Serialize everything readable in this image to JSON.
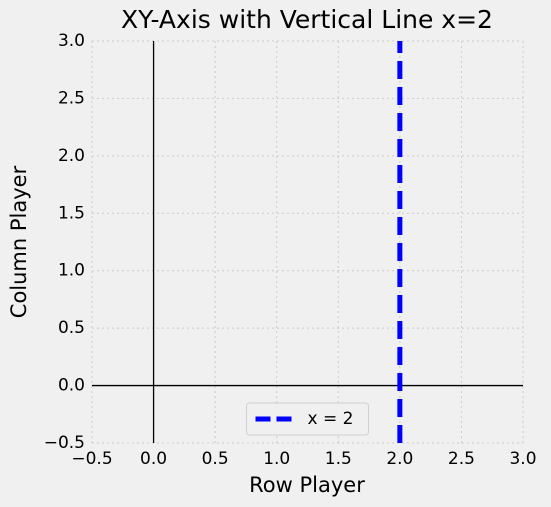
{
  "chart_data": {
    "type": "line",
    "title": "XY-Axis with Vertical Line x=2",
    "xlabel": "Row Player",
    "ylabel": "Column Player",
    "series": [
      {
        "name": "x = 2",
        "color": "#0000ff",
        "x": [
          2,
          2
        ],
        "values": [
          -0.5,
          3.0
        ]
      }
    ],
    "xlim": [
      -0.5,
      3.0
    ],
    "ylim": [
      -0.5,
      3.0
    ],
    "xticks": [
      {
        "value": -0.5,
        "label": "−0.5"
      },
      {
        "value": 0,
        "label": "0.0"
      },
      {
        "value": 0.5,
        "label": "0.5"
      },
      {
        "value": 1,
        "label": "1.0"
      },
      {
        "value": 1.5,
        "label": "1.5"
      },
      {
        "value": 2,
        "label": "2.0"
      },
      {
        "value": 2.5,
        "label": "2.5"
      },
      {
        "value": 3,
        "label": "3.0"
      }
    ],
    "yticks": [
      {
        "value": -0.5,
        "label": "−0.5"
      },
      {
        "value": 0,
        "label": "0.0"
      },
      {
        "value": 0.5,
        "label": "0.5"
      },
      {
        "value": 1,
        "label": "1.0"
      },
      {
        "value": 1.5,
        "label": "1.5"
      },
      {
        "value": 2,
        "label": "2.0"
      },
      {
        "value": 2.5,
        "label": "2.5"
      },
      {
        "value": 3,
        "label": "3.0"
      }
    ],
    "grid": true,
    "legend": "lower center"
  }
}
